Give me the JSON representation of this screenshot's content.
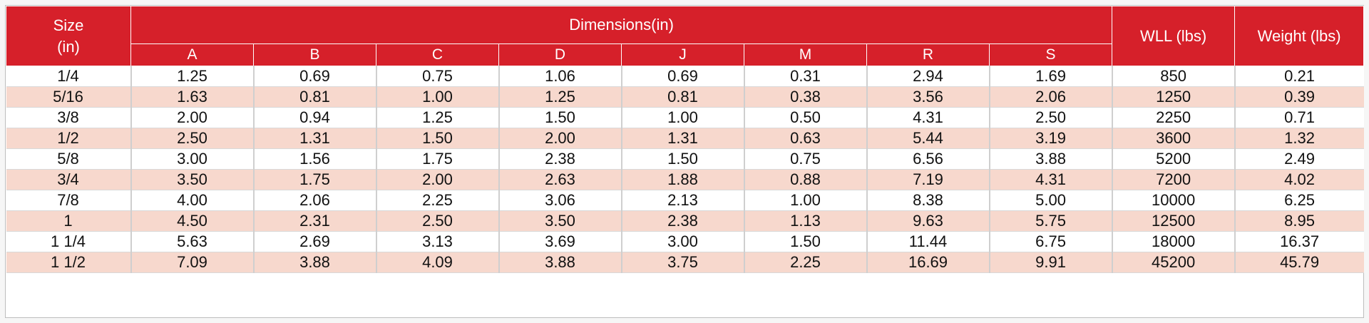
{
  "table": {
    "header_top": {
      "size": "Size",
      "size_unit": "(in)",
      "dimensions": "Dimensions(in)",
      "wll": "WLL (lbs)",
      "weight": "Weight (lbs)"
    },
    "dimension_columns": [
      "A",
      "B",
      "C",
      "D",
      "J",
      "M",
      "R",
      "S"
    ],
    "rows": [
      [
        "1/4",
        "1.25",
        "0.69",
        "0.75",
        "1.06",
        "0.69",
        "0.31",
        "2.94",
        "1.69",
        "850",
        "0.21"
      ],
      [
        "5/16",
        "1.63",
        "0.81",
        "1.00",
        "1.25",
        "0.81",
        "0.38",
        "3.56",
        "2.06",
        "1250",
        "0.39"
      ],
      [
        "3/8",
        "2.00",
        "0.94",
        "1.25",
        "1.50",
        "1.00",
        "0.50",
        "4.31",
        "2.50",
        "2250",
        "0.71"
      ],
      [
        "1/2",
        "2.50",
        "1.31",
        "1.50",
        "2.00",
        "1.31",
        "0.63",
        "5.44",
        "3.19",
        "3600",
        "1.32"
      ],
      [
        "5/8",
        "3.00",
        "1.56",
        "1.75",
        "2.38",
        "1.50",
        "0.75",
        "6.56",
        "3.88",
        "5200",
        "2.49"
      ],
      [
        "3/4",
        "3.50",
        "1.75",
        "2.00",
        "2.63",
        "1.88",
        "0.88",
        "7.19",
        "4.31",
        "7200",
        "4.02"
      ],
      [
        "7/8",
        "4.00",
        "2.06",
        "2.25",
        "3.06",
        "2.13",
        "1.00",
        "8.38",
        "5.00",
        "10000",
        "6.25"
      ],
      [
        "1",
        "4.50",
        "2.31",
        "2.50",
        "3.50",
        "2.38",
        "1.13",
        "9.63",
        "5.75",
        "12500",
        "8.95"
      ],
      [
        "1 1/4",
        "5.63",
        "2.69",
        "3.13",
        "3.69",
        "3.00",
        "1.50",
        "11.44",
        "6.75",
        "18000",
        "16.37"
      ],
      [
        "1 1/2",
        "7.09",
        "3.88",
        "4.09",
        "3.88",
        "3.75",
        "2.25",
        "16.69",
        "9.91",
        "45200",
        "45.79"
      ]
    ]
  },
  "colors": {
    "header_red": "#d6202a",
    "row_stripe": "#f7d8cd"
  }
}
